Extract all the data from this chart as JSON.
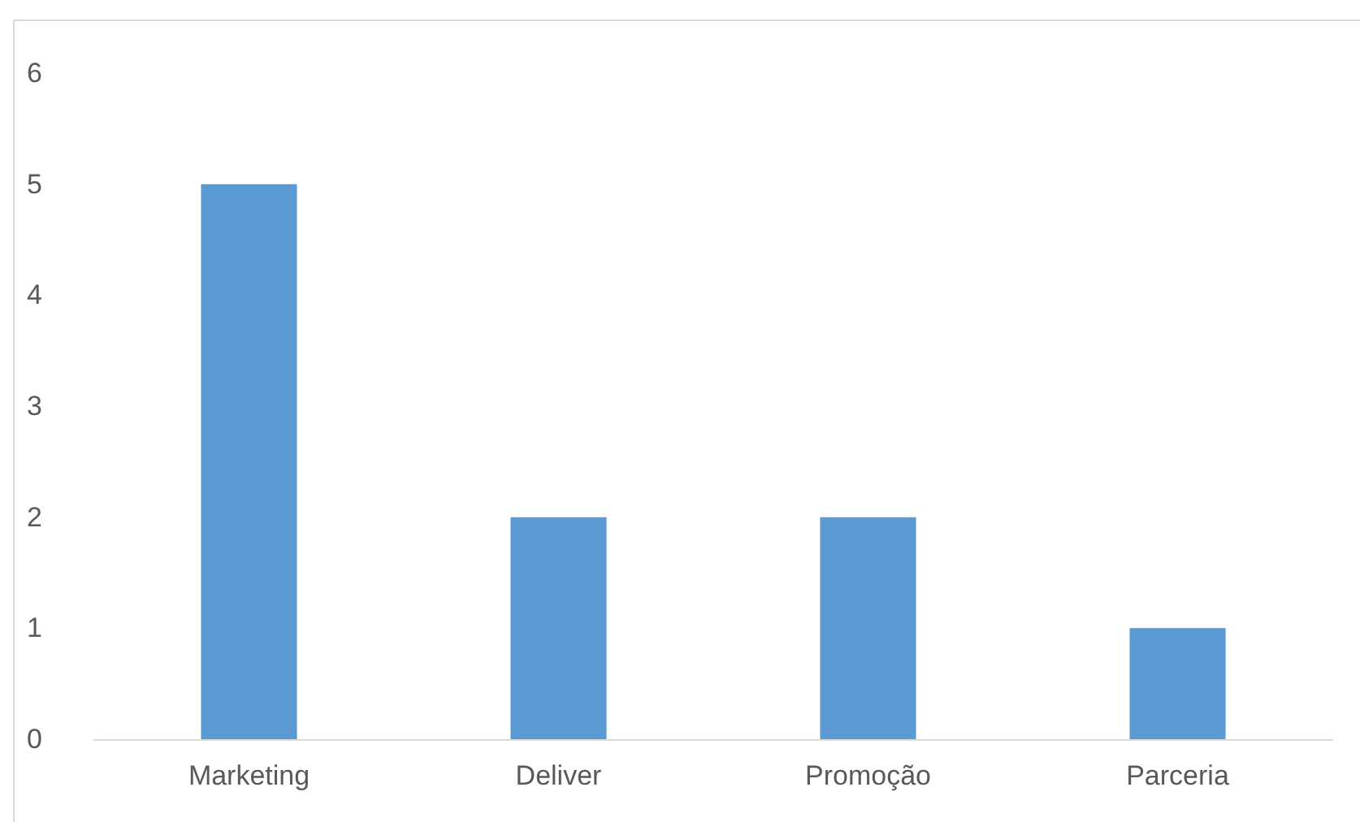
{
  "chart_data": {
    "type": "bar",
    "categories": [
      "Marketing",
      "Deliver",
      "Promoção",
      "Parceria"
    ],
    "values": [
      5,
      2,
      2,
      1
    ],
    "color": "#5b9bd5",
    "ylim": [
      0,
      6
    ],
    "yticks": [
      0,
      1,
      2,
      3,
      4,
      5,
      6
    ],
    "grid": false
  }
}
